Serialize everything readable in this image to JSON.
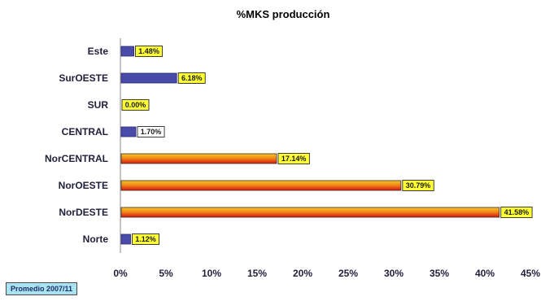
{
  "chart_data": {
    "type": "bar",
    "orientation": "horizontal",
    "title": "%MKS producción",
    "categories": [
      "Este",
      "SurOESTE",
      "SUR",
      "CENTRAL",
      "NorCENTRAL",
      "NorOESTE",
      "NorDESTE",
      "Norte"
    ],
    "values": [
      1.48,
      6.18,
      0.0,
      1.7,
      17.14,
      30.79,
      41.58,
      1.12
    ],
    "data_labels": [
      "1.48%",
      "6.18%",
      "0.00%",
      "1.70%",
      "17.14%",
      "30.79%",
      "41.58%",
      "1.12%"
    ],
    "bar_styles": [
      "blue",
      "blue",
      "blue",
      "blue",
      "orange-red",
      "orange-red",
      "orange-red",
      "blue"
    ],
    "label_box_styles": [
      "yellow",
      "yellow",
      "yellow",
      "white",
      "yellow",
      "yellow",
      "yellow",
      "yellow"
    ],
    "x_ticks": [
      "0%",
      "5%",
      "10%",
      "15%",
      "20%",
      "25%",
      "30%",
      "35%",
      "40%",
      "45%"
    ],
    "xlim": [
      0,
      45
    ],
    "xlabel": "",
    "ylabel": "",
    "grid": false,
    "legend": "none",
    "colors": {
      "blue": "#4a4aa8",
      "orange_red_top": "#f7b21a",
      "orange_red_bottom": "#e41d12",
      "label_yellow": "#ffff33",
      "label_white": "#ffffff"
    }
  },
  "note": "Promedio 2007/11"
}
